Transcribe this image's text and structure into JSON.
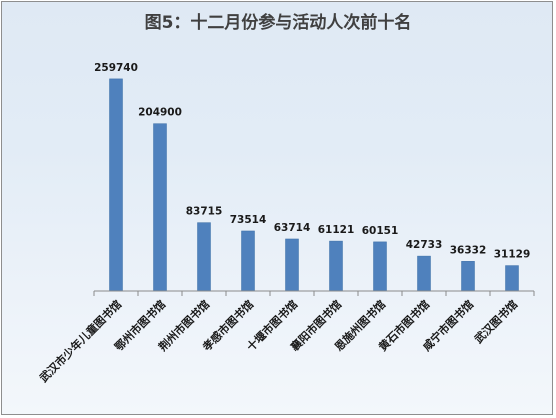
{
  "chart_data": {
    "type": "bar",
    "title": "图5：十二月份参与活动人次前十名",
    "categories": [
      "武汉市少年儿童图书馆",
      "鄂州市图书馆",
      "荆州市图书馆",
      "孝感市图书馆",
      "十堰市图书馆",
      "襄阳市图书馆",
      "恩施州图书馆",
      "黄石市图书馆",
      "咸宁市图书馆",
      "武汉图书馆"
    ],
    "values": [
      259740,
      204900,
      83715,
      73514,
      63714,
      61121,
      60151,
      42733,
      36332,
      31129
    ],
    "data_labels": [
      "259740",
      "204900",
      "83715",
      "73514",
      "63714",
      "61121",
      "60151",
      "42733",
      "36332",
      "31129"
    ],
    "ylim": [
      0,
      300000
    ],
    "grid": false,
    "legend": "none",
    "bar_color": "#4f81bd",
    "bar_edge_color": "#3b6ea5",
    "axis_color": "#8a8a8a",
    "background_top": "#dfe9f4",
    "background_bottom": "#f3f7fb"
  }
}
